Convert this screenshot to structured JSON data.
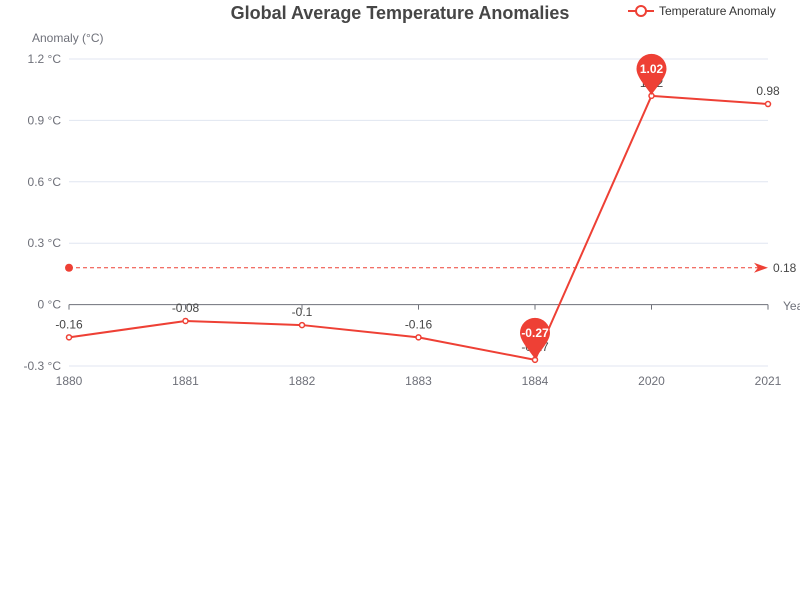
{
  "chart_data": {
    "type": "line",
    "title": "Global Average Temperature Anomalies",
    "xlabel": "Year",
    "ylabel": "Anomaly (°C)",
    "categories": [
      "1880",
      "1881",
      "1882",
      "1883",
      "1884",
      "2020",
      "2021"
    ],
    "series": [
      {
        "name": "Temperature Anomaly",
        "values": [
          -0.16,
          -0.08,
          -0.1,
          -0.16,
          -0.27,
          1.02,
          0.98
        ],
        "color": "#ee4035"
      }
    ],
    "ylim": [
      -0.3,
      1.2
    ],
    "yticks": [
      -0.3,
      0,
      0.3,
      0.6,
      0.9,
      1.2
    ],
    "ytick_labels": [
      "-0.3 °C",
      "0 °C",
      "0.3 °C",
      "0.6 °C",
      "0.9 °C",
      "1.2 °C"
    ],
    "mark_points": [
      {
        "type": "max",
        "category": "2020",
        "value": 1.02,
        "label": "1.02"
      },
      {
        "type": "min",
        "category": "1884",
        "value": -0.27,
        "label": "-0.27"
      }
    ],
    "mark_line": {
      "type": "average",
      "value": 0.18,
      "label": "0.18"
    },
    "legend_position": "top-right",
    "grid": true
  }
}
